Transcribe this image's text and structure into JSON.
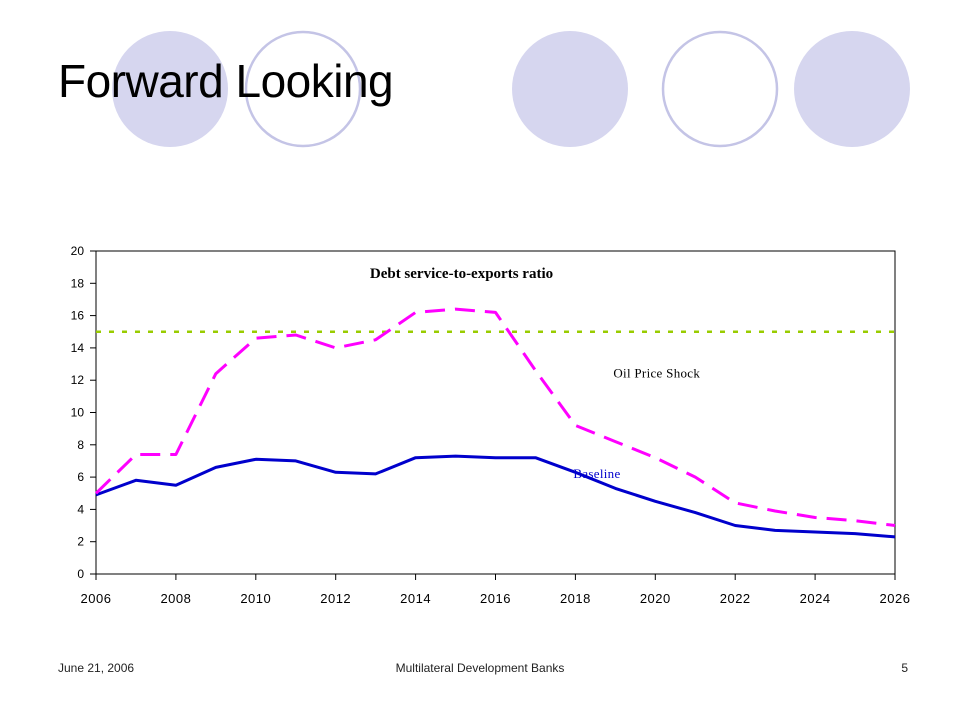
{
  "slide": {
    "title": "Forward Looking",
    "footer": {
      "date": "June 21, 2006",
      "center": "Multilateral Development Banks",
      "page": "5"
    },
    "colors": {
      "decor_fill": "#d6d6ef",
      "decor_ring": "#c4c4e6"
    }
  },
  "chart_data": {
    "type": "line",
    "title": "Debt service-to-exports ratio",
    "xlabel": "",
    "ylabel": "",
    "xlim": [
      2006,
      2026
    ],
    "ylim": [
      0,
      20
    ],
    "xticks": [
      "2006",
      "2008",
      "2010",
      "2012",
      "2014",
      "2016",
      "2018",
      "2020",
      "2022",
      "2024",
      "2026"
    ],
    "yticks": [
      "0",
      "2",
      "4",
      "6",
      "8",
      "10",
      "12",
      "14",
      "16",
      "18",
      "20"
    ],
    "grid": false,
    "legend": "none",
    "series": [
      {
        "name": "Oil Price Shock",
        "style": "dashed",
        "color": "#ff00ff",
        "x": [
          2006,
          2007,
          2008,
          2009,
          2010,
          2011,
          2012,
          2013,
          2014,
          2015,
          2016,
          2017,
          2018,
          2019,
          2020,
          2021,
          2022,
          2023,
          2024,
          2025,
          2026
        ],
        "y": [
          5.0,
          7.4,
          7.4,
          12.4,
          14.6,
          14.8,
          14.0,
          14.5,
          16.2,
          16.4,
          16.2,
          12.6,
          9.2,
          8.2,
          7.2,
          6.0,
          4.4,
          3.9,
          3.5,
          3.3,
          3.0
        ]
      },
      {
        "name": "Baseline",
        "style": "solid",
        "color": "#0000cc",
        "x": [
          2006,
          2007,
          2008,
          2009,
          2010,
          2011,
          2012,
          2013,
          2014,
          2015,
          2016,
          2017,
          2018,
          2019,
          2020,
          2021,
          2022,
          2023,
          2024,
          2025,
          2026
        ],
        "y": [
          4.9,
          5.8,
          5.5,
          6.6,
          7.1,
          7.0,
          6.3,
          6.2,
          7.2,
          7.3,
          7.2,
          7.2,
          6.3,
          5.3,
          4.5,
          3.8,
          3.0,
          2.7,
          2.6,
          2.5,
          2.3
        ]
      },
      {
        "name": "",
        "style": "dotted",
        "color": "#99cc00",
        "x": [
          2006,
          2026
        ],
        "y": [
          15,
          15
        ]
      }
    ],
    "annotations": [
      {
        "text": "Oil Price Shock",
        "x": 2019.0,
        "y": 12.4,
        "color": "#000000"
      },
      {
        "text": "Baseline",
        "x": 2018.0,
        "y": 6.2,
        "color": "#0000cc"
      }
    ]
  }
}
